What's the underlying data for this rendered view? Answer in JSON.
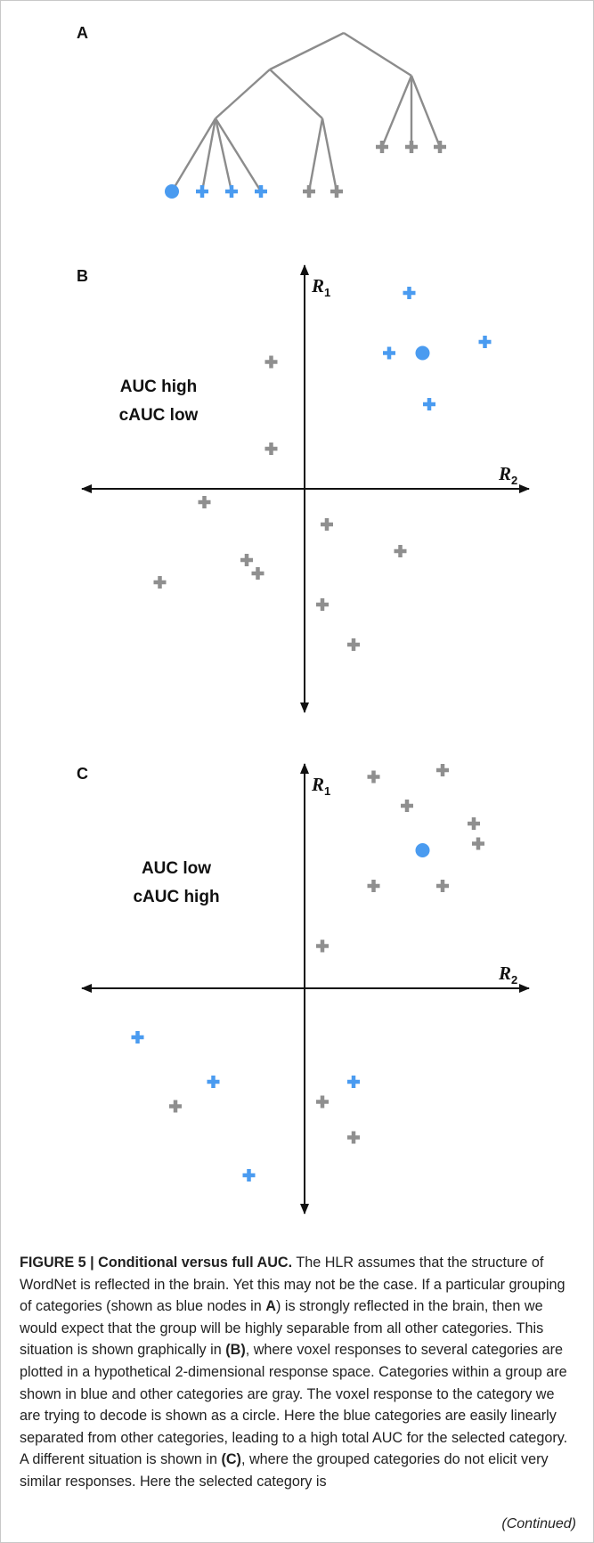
{
  "colors": {
    "blue": "#4a9bf0",
    "gray": "#8f8f8f",
    "axis": "#111111",
    "tree": "#8c8c8c"
  },
  "panels": {
    "a": {
      "label": "A"
    },
    "b": {
      "label": "B",
      "note_line1": "AUC high",
      "note_line2": "cAUC low",
      "axis_y": "R",
      "axis_y_sub": "1",
      "axis_x": "R",
      "axis_x_sub": "2"
    },
    "c": {
      "label": "C",
      "note_line1": "AUC low",
      "note_line2": "cAUC high",
      "axis_y": "R",
      "axis_y_sub": "1",
      "axis_x": "R",
      "axis_x_sub": "2"
    }
  },
  "tree": {
    "leaves": [
      {
        "marker": "circle",
        "color": "blue"
      },
      {
        "marker": "plus",
        "color": "blue"
      },
      {
        "marker": "plus",
        "color": "blue"
      },
      {
        "marker": "plus",
        "color": "blue"
      },
      {
        "marker": "plus",
        "color": "gray"
      },
      {
        "marker": "plus",
        "color": "gray"
      },
      {
        "marker": "plus",
        "color": "gray"
      },
      {
        "marker": "plus",
        "color": "gray"
      },
      {
        "marker": "plus",
        "color": "gray"
      }
    ]
  },
  "chart_data": [
    {
      "type": "scatter",
      "panel": "B",
      "title": "",
      "xlabel": "R2",
      "ylabel": "R1",
      "xlim": [
        -1,
        1
      ],
      "ylim": [
        -1,
        1
      ],
      "grid": false,
      "series": [
        {
          "group": "selected category",
          "marker": "circle",
          "color": "blue",
          "points": [
            {
              "x": 0.53,
              "y": 0.61
            }
          ]
        },
        {
          "group": "blue group",
          "marker": "plus",
          "color": "blue",
          "points": [
            {
              "x": 0.47,
              "y": 0.88
            },
            {
              "x": 0.38,
              "y": 0.61
            },
            {
              "x": 0.81,
              "y": 0.66
            },
            {
              "x": 0.56,
              "y": 0.38
            }
          ]
        },
        {
          "group": "other categories",
          "marker": "plus",
          "color": "gray",
          "points": [
            {
              "x": -0.15,
              "y": 0.57
            },
            {
              "x": -0.15,
              "y": 0.18
            },
            {
              "x": -0.45,
              "y": -0.06
            },
            {
              "x": 0.1,
              "y": -0.16
            },
            {
              "x": 0.43,
              "y": -0.28
            },
            {
              "x": -0.26,
              "y": -0.32
            },
            {
              "x": -0.21,
              "y": -0.38
            },
            {
              "x": -0.65,
              "y": -0.42
            },
            {
              "x": 0.08,
              "y": -0.52
            },
            {
              "x": 0.22,
              "y": -0.7
            }
          ]
        }
      ]
    },
    {
      "type": "scatter",
      "panel": "C",
      "title": "",
      "xlabel": "R2",
      "ylabel": "R1",
      "xlim": [
        -1,
        1
      ],
      "ylim": [
        -1,
        1
      ],
      "grid": false,
      "series": [
        {
          "group": "selected category",
          "marker": "circle",
          "color": "blue",
          "points": [
            {
              "x": 0.53,
              "y": 0.62
            }
          ]
        },
        {
          "group": "blue group",
          "marker": "plus",
          "color": "blue",
          "points": [
            {
              "x": -0.75,
              "y": -0.22
            },
            {
              "x": -0.41,
              "y": -0.42
            },
            {
              "x": 0.22,
              "y": -0.42
            },
            {
              "x": -0.25,
              "y": -0.84
            }
          ]
        },
        {
          "group": "other categories",
          "marker": "plus",
          "color": "gray",
          "points": [
            {
              "x": 0.31,
              "y": 0.95
            },
            {
              "x": 0.62,
              "y": 0.98
            },
            {
              "x": 0.46,
              "y": 0.82
            },
            {
              "x": 0.76,
              "y": 0.74
            },
            {
              "x": 0.78,
              "y": 0.65
            },
            {
              "x": 0.31,
              "y": 0.46
            },
            {
              "x": 0.62,
              "y": 0.46
            },
            {
              "x": 0.08,
              "y": 0.19
            },
            {
              "x": -0.58,
              "y": -0.53
            },
            {
              "x": 0.08,
              "y": -0.51
            },
            {
              "x": 0.22,
              "y": -0.67
            }
          ]
        }
      ]
    }
  ],
  "caption": {
    "title": "FIGURE 5 | Conditional versus full AUC.",
    "s1": " The HLR assumes that the structure of WordNet is reflected in the brain. Yet this may not be the case. If a particular grouping of categories (shown as blue nodes in ",
    "ref_a": "A",
    "s2": ") is strongly reflected in the brain, then we would expect that the group will be highly separable from all other categories. This situation is shown graphically in ",
    "ref_b": "(B)",
    "s3": ", where voxel responses to several categories are plotted in a hypothetical 2-dimensional response space. Categories within a group are shown in blue and other categories are gray. The voxel response to the category we are trying to decode is shown as a circle. Here the blue categories are easily linearly separated from other categories, leading to a high total AUC for the selected category. A different situation is shown in ",
    "ref_c": "(C)",
    "s4": ", where the grouped categories do not elicit very similar responses. Here the selected category is",
    "continued": "(Continued)"
  }
}
